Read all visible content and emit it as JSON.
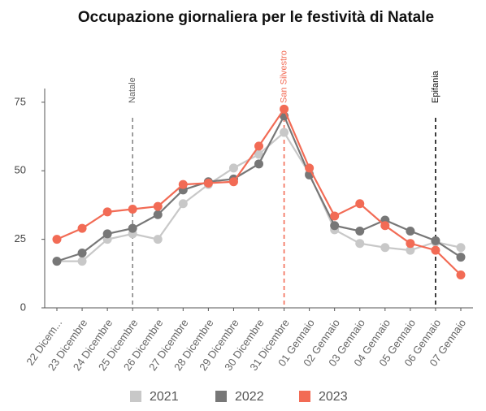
{
  "chart_data": {
    "type": "line",
    "title": "Occupazione giornaliera per le festività di Natale",
    "categories": [
      "22 Dicem...",
      "23 Dicembre",
      "24 Dicembre",
      "25 Dicembre",
      "26 Dicembre",
      "27 Dicembre",
      "28 Dicembre",
      "29 Dicembre",
      "30 Dicembre",
      "31 Dicembre",
      "01 Gennaio",
      "02 Gennaio",
      "03 Gennaio",
      "04 Gennaio",
      "05 Gennaio",
      "06 Gennaio",
      "07 Gennaio"
    ],
    "series": [
      {
        "name": "2021",
        "color": "#c8c8c8",
        "values": [
          17,
          17,
          25,
          27,
          25,
          38,
          45,
          51,
          56,
          64,
          49,
          28.5,
          23.5,
          22,
          21,
          24,
          22
        ]
      },
      {
        "name": "2022",
        "color": "#777777",
        "values": [
          17,
          20,
          27,
          29,
          34,
          43,
          46,
          47,
          52.5,
          70,
          48.5,
          30,
          28,
          32,
          28,
          24.5,
          18.5
        ]
      },
      {
        "name": "2023",
        "color": "#f26b55",
        "values": [
          25,
          29,
          35,
          36,
          37,
          45,
          45.5,
          46,
          59,
          72.5,
          51,
          33.5,
          38,
          30,
          23.5,
          21,
          12
        ]
      }
    ],
    "annotations": [
      {
        "label": "Natale",
        "x": 3,
        "color": "#888888"
      },
      {
        "label": "San Silvestro",
        "x": 9,
        "color": "#f26b55"
      },
      {
        "label": "Epifania",
        "x": 15,
        "color": "#111111"
      }
    ],
    "ylim": [
      0,
      80
    ],
    "yticks": [
      0,
      25,
      50,
      75
    ],
    "legend": "bottom"
  }
}
